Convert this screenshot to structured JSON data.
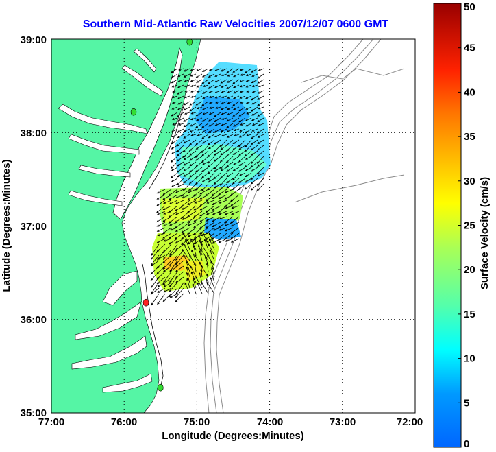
{
  "map": {
    "title": "Southern Mid-Atlantic Raw Velocities 2007/12/07 0600 GMT",
    "xlabel": "Longitude (Degrees:Minutes)",
    "ylabel": "Latitude (Degrees:Minutes)",
    "x_ticks": [
      "77:00",
      "76:00",
      "75:00",
      "74:00",
      "73:00",
      "72:00"
    ],
    "y_ticks": [
      "39:00",
      "38:00",
      "37:00",
      "36:00",
      "35:00"
    ],
    "lon_range": [
      -77,
      -72
    ],
    "lat_range": [
      35,
      39
    ],
    "grid": true,
    "land_color": "#55f5a5",
    "contour_color": "#8a8a8a",
    "vector_color": "#000000",
    "station_markers": [
      {
        "lon": -75.1,
        "lat": 38.97,
        "color": "#33dd33"
      },
      {
        "lon": -75.87,
        "lat": 38.22,
        "color": "#33dd33"
      },
      {
        "lon": -75.7,
        "lat": 36.18,
        "color": "#ff2222"
      },
      {
        "lon": -75.5,
        "lat": 35.27,
        "color": "#33dd33"
      }
    ]
  },
  "colorbar": {
    "label": "Surface Velocity (cm/s)",
    "min": 0,
    "max": 50,
    "ticks": [
      "0",
      "5",
      "10",
      "15",
      "20",
      "25",
      "30",
      "35",
      "40",
      "45",
      "50"
    ],
    "colormap": "jet"
  }
}
